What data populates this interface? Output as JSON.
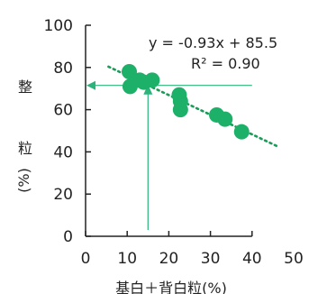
{
  "chart_data": {
    "type": "scatter",
    "xlabel": "基白＋背白粒(%)",
    "ylabel_chars": [
      "整",
      "粒",
      "(%)"
    ],
    "xlim": [
      0,
      50
    ],
    "ylim": [
      0,
      100
    ],
    "x_ticks": [
      0,
      10,
      20,
      30,
      40,
      50
    ],
    "y_ticks": [
      0,
      20,
      40,
      60,
      80,
      100
    ],
    "grid": false,
    "series": [
      {
        "points": [
          {
            "x": 10.5,
            "y": 78
          },
          {
            "x": 10.7,
            "y": 71
          },
          {
            "x": 13,
            "y": 74
          },
          {
            "x": 14,
            "y": 73
          },
          {
            "x": 16,
            "y": 74
          },
          {
            "x": 22.5,
            "y": 67
          },
          {
            "x": 22.8,
            "y": 64
          },
          {
            "x": 22.8,
            "y": 60
          },
          {
            "x": 31.5,
            "y": 57.5
          },
          {
            "x": 33.5,
            "y": 55.5
          },
          {
            "x": 37.5,
            "y": 49.5
          }
        ]
      }
    ],
    "trendline": {
      "slope": -0.93,
      "intercept": 85.5,
      "x_range": [
        5.5,
        46.5
      ],
      "equation_label": "y = -0.93x + 85.5",
      "r2_label": "R² = 0.90"
    },
    "reference_lines": {
      "x_value": 15,
      "y_value": 71.5,
      "vertical_from_y": 3,
      "horizontal_to_x": 40
    },
    "colors": {
      "marker": "#1db069",
      "trend": "#1a9b58",
      "reference": "#2bb37a",
      "axis": "#222222"
    }
  }
}
